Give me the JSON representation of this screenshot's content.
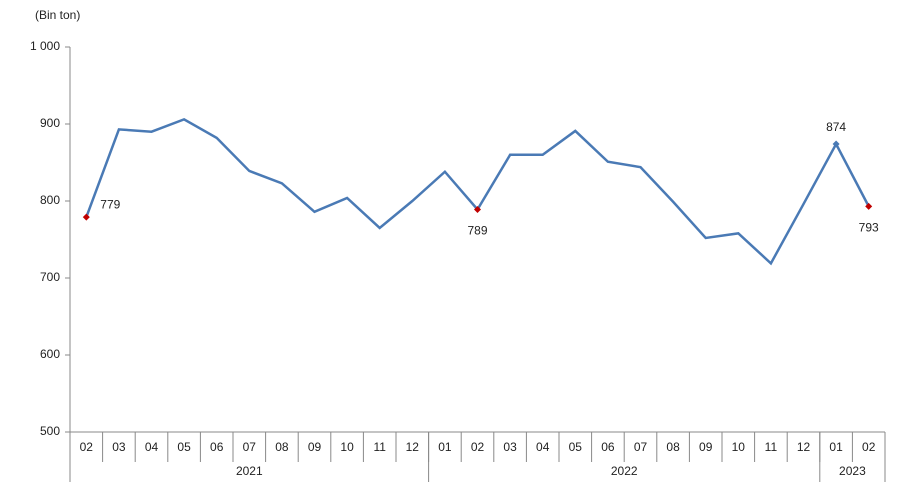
{
  "chart_data": {
    "type": "line",
    "y_axis_label": "(Bin ton)",
    "categories": [
      "02",
      "03",
      "04",
      "05",
      "06",
      "07",
      "08",
      "09",
      "10",
      "11",
      "12",
      "01",
      "02",
      "03",
      "04",
      "05",
      "06",
      "07",
      "08",
      "09",
      "10",
      "11",
      "12",
      "01",
      "02"
    ],
    "groups": [
      {
        "label": "2021",
        "count": 11
      },
      {
        "label": "2022",
        "count": 12
      },
      {
        "label": "2023",
        "count": 2
      }
    ],
    "series": [
      {
        "name": "Bin ton",
        "color": "#4a7ab5",
        "values": [
          779,
          893,
          890,
          906,
          882,
          839,
          823,
          786,
          804,
          765,
          800,
          838,
          789,
          860,
          860,
          891,
          851,
          844,
          799,
          752,
          758,
          719,
          796,
          874,
          793
        ],
        "value_labels": [
          "779",
          null,
          null,
          null,
          null,
          null,
          null,
          null,
          null,
          null,
          null,
          null,
          "789",
          null,
          null,
          null,
          null,
          null,
          null,
          null,
          null,
          null,
          null,
          "874",
          "793"
        ],
        "marker_colors": [
          "#c00000",
          null,
          null,
          null,
          null,
          null,
          null,
          null,
          null,
          null,
          null,
          null,
          "#c00000",
          null,
          null,
          null,
          null,
          null,
          null,
          null,
          null,
          null,
          null,
          "#4a7ab5",
          "#c00000"
        ]
      }
    ],
    "ylim": [
      500,
      1000
    ],
    "yticks": [
      500,
      600,
      700,
      800,
      900,
      {
        "value": 1000,
        "label": "1 000"
      }
    ],
    "grid": false
  }
}
